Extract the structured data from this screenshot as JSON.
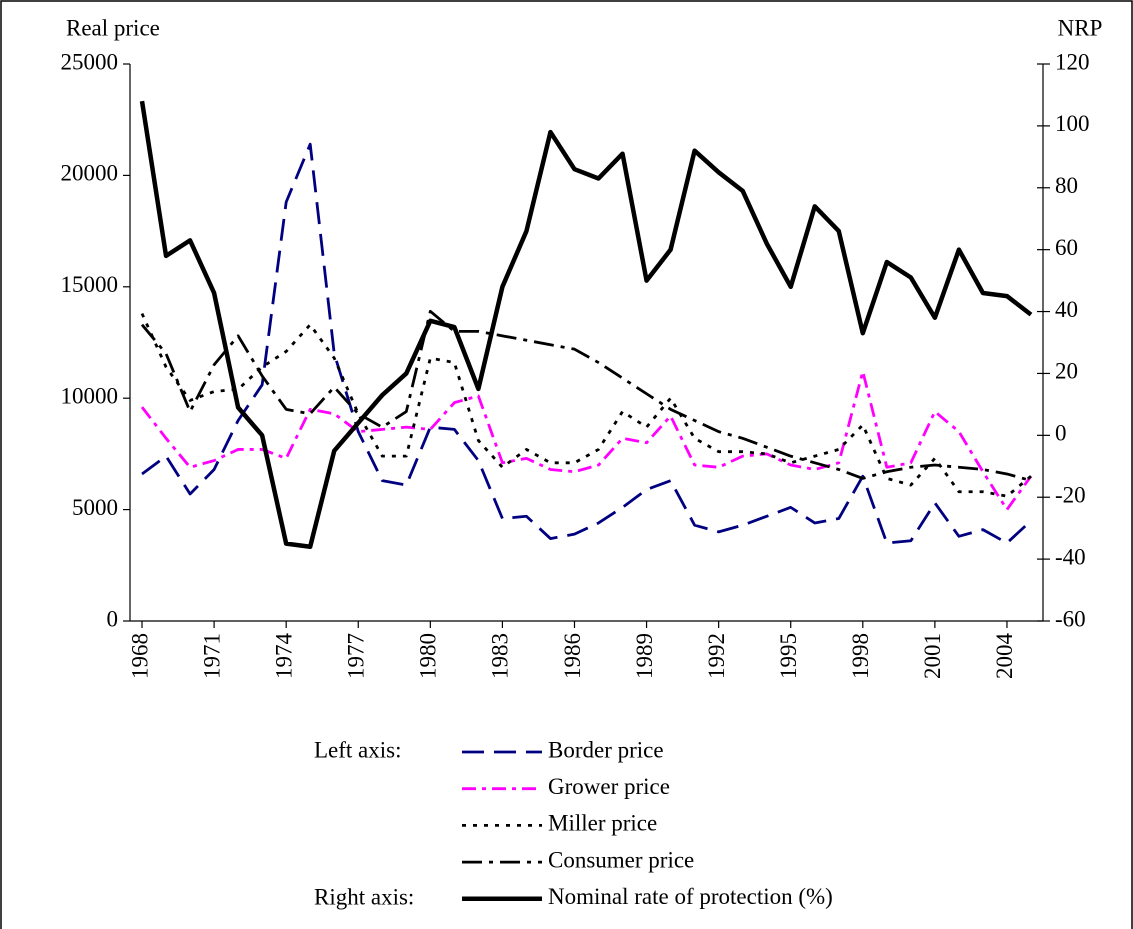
{
  "chart_data": {
    "type": "line",
    "y_label": "Real price",
    "y2_label": "NRP",
    "x": [
      1968,
      1969,
      1970,
      1971,
      1972,
      1973,
      1974,
      1975,
      1976,
      1977,
      1978,
      1979,
      1980,
      1981,
      1982,
      1983,
      1984,
      1985,
      1986,
      1987,
      1988,
      1989,
      1990,
      1991,
      1992,
      1993,
      1994,
      1995,
      1996,
      1997,
      1998,
      1999,
      2000,
      2001,
      2002,
      2003,
      2004,
      2005
    ],
    "xlim": [
      1967.5,
      2005.5
    ],
    "xticks": [
      1968,
      1971,
      1974,
      1977,
      1980,
      1983,
      1986,
      1989,
      1992,
      1995,
      1998,
      2001,
      2004
    ],
    "ylim": [
      0,
      25000
    ],
    "yticks": [
      0,
      5000,
      10000,
      15000,
      20000,
      25000
    ],
    "y2lim": [
      -60,
      120
    ],
    "y2ticks": [
      -60,
      -40,
      -20,
      0,
      20,
      40,
      60,
      80,
      100,
      120
    ],
    "legend_left_label": "Left axis:",
    "legend_right_label": "Right axis:",
    "series": [
      {
        "name": "Border price",
        "color": "#000080",
        "dash": "long-dash",
        "values": [
          6600,
          7400,
          5700,
          6800,
          9000,
          10600,
          18800,
          21400,
          12000,
          8500,
          6300,
          6100,
          8700,
          8600,
          7200,
          4600,
          4700,
          3700,
          3900,
          4400,
          5100,
          5900,
          6300,
          4300,
          4000,
          4300,
          4700,
          5100,
          4400,
          4600,
          6500,
          3500,
          3600,
          5300,
          3800,
          4100,
          3500,
          4500
        ]
      },
      {
        "name": "Grower price",
        "color": "#ff00ff",
        "dash": "dash-dot",
        "values": [
          9600,
          8200,
          6900,
          7200,
          7700,
          7700,
          7300,
          9500,
          9300,
          8500,
          8600,
          8700,
          8600,
          9800,
          10100,
          7100,
          7300,
          6800,
          6700,
          7000,
          8200,
          8000,
          9200,
          7000,
          6900,
          7400,
          7500,
          7000,
          6800,
          7100,
          11200,
          6900,
          7100,
          9400,
          8500,
          6700,
          5000,
          6500
        ]
      },
      {
        "name": "Miller price",
        "color": "#000000",
        "dash": "dot",
        "values": [
          13800,
          11400,
          9900,
          10300,
          10400,
          11400,
          12100,
          13300,
          11800,
          9300,
          7400,
          7400,
          11800,
          11600,
          8100,
          6900,
          7700,
          7100,
          7100,
          7700,
          9400,
          8700,
          10000,
          8200,
          7600,
          7600,
          7500,
          7100,
          7400,
          7700,
          8800,
          6400,
          6100,
          7300,
          5800,
          5800,
          5600,
          6500
        ]
      },
      {
        "name": "Consumer price",
        "color": "#000000",
        "dash": "long-dash-dot",
        "values": [
          13300,
          12000,
          9400,
          11500,
          12800,
          11000,
          9500,
          9300,
          10500,
          9300,
          8700,
          9400,
          13900,
          13000,
          13000,
          12800,
          12600,
          12400,
          12200,
          11600,
          10900,
          10200,
          9500,
          9000,
          8500,
          8200,
          7800,
          7400,
          7100,
          6800,
          6400,
          6700,
          6900,
          7000,
          6900,
          6800,
          6600,
          6300
        ]
      },
      {
        "name": "Nominal rate of protection (%)",
        "color": "#000000",
        "dash": "solid",
        "axis": "y2",
        "values": [
          108,
          58,
          63,
          46,
          9,
          0,
          -35,
          -36,
          -5,
          4,
          13,
          20,
          37,
          35,
          15,
          48,
          66,
          98,
          86,
          83,
          91,
          50,
          60,
          92,
          85,
          79,
          62,
          48,
          74,
          66,
          33,
          56,
          51,
          38,
          60,
          46,
          45,
          39
        ]
      }
    ]
  }
}
